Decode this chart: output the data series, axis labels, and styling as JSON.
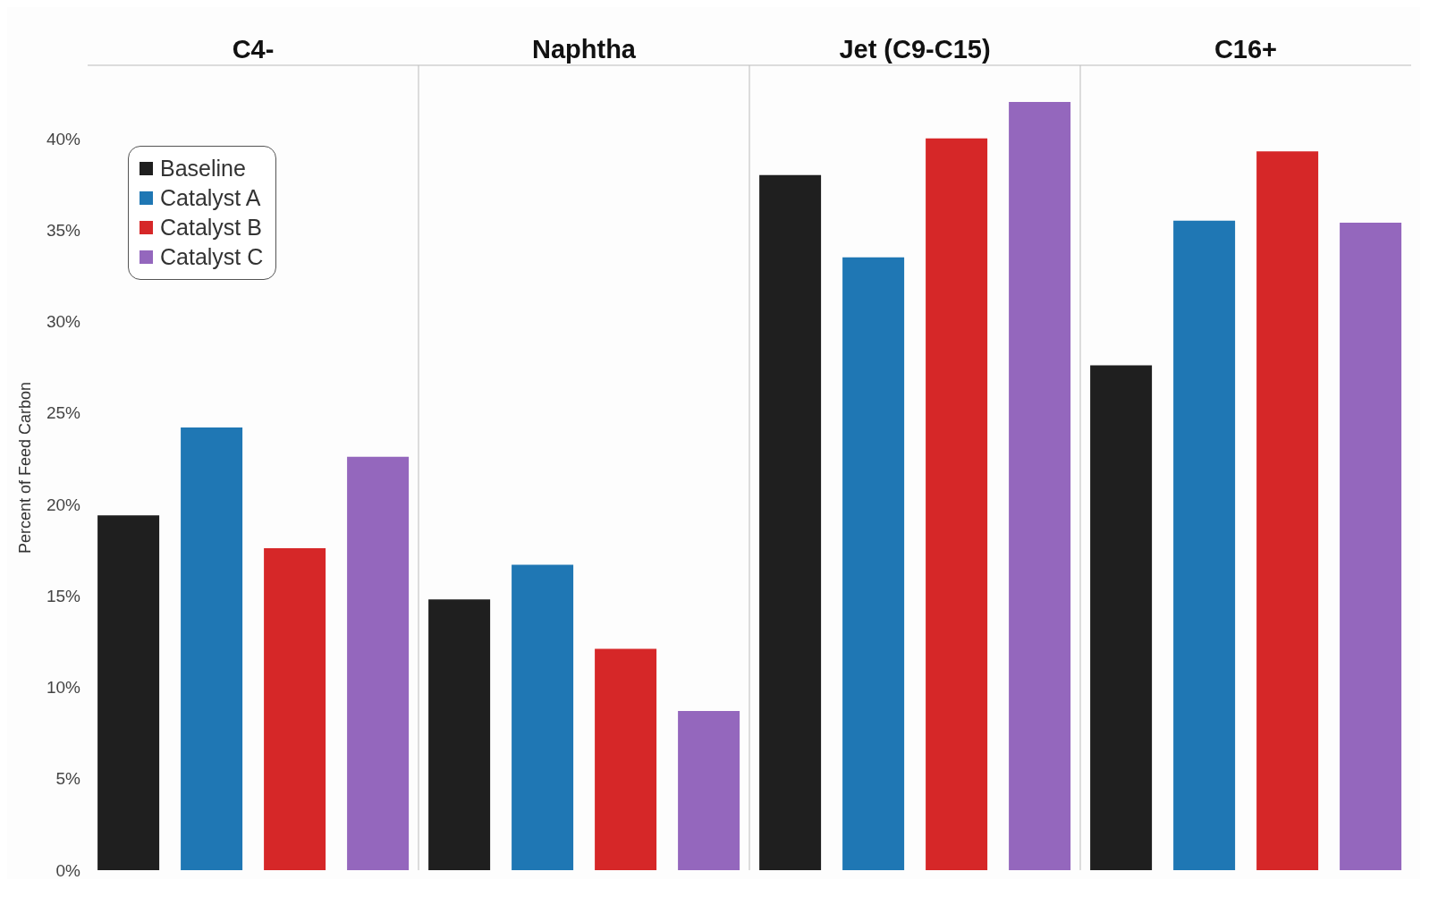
{
  "chart_data": {
    "type": "bar",
    "ylabel": "Percent of Feed Carbon",
    "categories": [
      "C4-",
      "Naphtha",
      "Jet (C9-C15)",
      "C16+"
    ],
    "series": [
      {
        "name": "Baseline",
        "color": "#1f1f1f",
        "values": [
          19.4,
          14.8,
          38.0,
          27.6
        ]
      },
      {
        "name": "Catalyst A",
        "color": "#1f77b4",
        "values": [
          24.2,
          16.7,
          33.5,
          35.5
        ]
      },
      {
        "name": "Catalyst B",
        "color": "#d62728",
        "values": [
          17.6,
          12.1,
          40.0,
          39.3
        ]
      },
      {
        "name": "Catalyst C",
        "color": "#9467bd",
        "values": [
          22.6,
          8.7,
          42.0,
          35.4
        ]
      }
    ],
    "ylim": [
      0,
      44
    ],
    "yticks": [
      {
        "value": 0,
        "label": "0%"
      },
      {
        "value": 5,
        "label": "5%"
      },
      {
        "value": 10,
        "label": "10%"
      },
      {
        "value": 15,
        "label": "15%"
      },
      {
        "value": 20,
        "label": "20%"
      },
      {
        "value": 25,
        "label": "25%"
      },
      {
        "value": 30,
        "label": "30%"
      },
      {
        "value": 35,
        "label": "35%"
      },
      {
        "value": 40,
        "label": "40%"
      }
    ],
    "grid": "x",
    "legend": "top left"
  }
}
